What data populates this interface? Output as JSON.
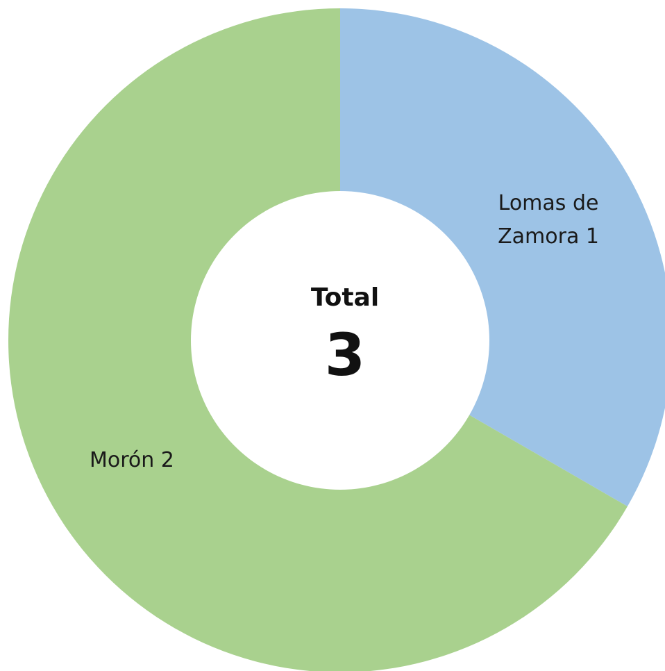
{
  "chart_data": {
    "type": "donut",
    "categories": [
      "Lomas de Zamora",
      "Morón"
    ],
    "values": [
      1,
      2
    ],
    "colors": [
      "#9dc3e6",
      "#a9d18e"
    ],
    "center_title": "Total",
    "center_value": 3
  }
}
